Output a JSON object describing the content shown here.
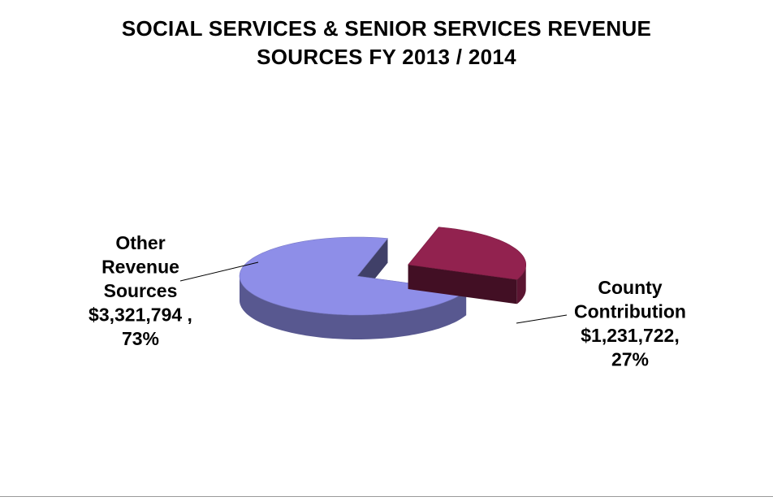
{
  "chart_data": {
    "type": "pie",
    "title_lines": [
      "SOCIAL SERVICES & SENIOR SERVICES REVENUE",
      "SOURCES FY 2013 / 2014"
    ],
    "slices": [
      {
        "label_lines": [
          "Other",
          "Revenue",
          "Sources",
          "$3,321,794  ,",
          "73%"
        ],
        "value": 3321794,
        "percent": 73,
        "color": "#8e8ee8",
        "exploded": false
      },
      {
        "label_lines": [
          "County",
          "Contribution",
          "$1,231,722,",
          "27%"
        ],
        "value": 1231722,
        "percent": 27,
        "color": "#92224f",
        "exploded": true
      }
    ],
    "legend": "none",
    "style": "3d-exploded"
  }
}
